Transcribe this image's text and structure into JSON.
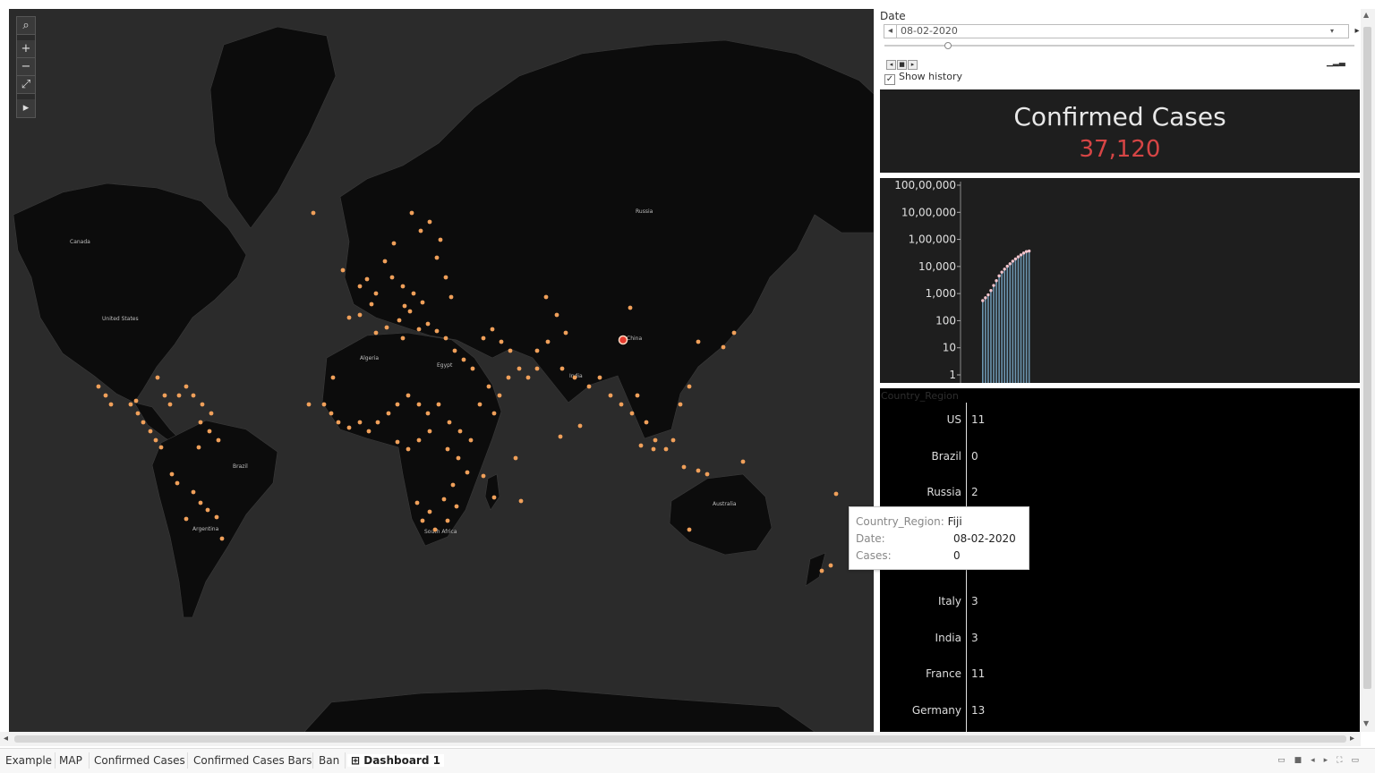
{
  "map": {
    "labels": [
      "Canada",
      "United States",
      "Brazil",
      "Argentina",
      "Algeria",
      "Egypt",
      "South Africa",
      "Russia",
      "China",
      "India",
      "Australia"
    ]
  },
  "controls": {
    "date_label": "Date",
    "date_value": "08-02-2020",
    "show_history": "Show history",
    "show_history_checked": true,
    "check_glyph": "✓"
  },
  "kpi": {
    "title": "Confirmed Cases",
    "value": "37,120",
    "value_color": "#d64545"
  },
  "chart_data": {
    "type": "bar",
    "scale": "log",
    "y_ticks": [
      "100,00,000",
      "10,00,000",
      "1,00,000",
      "10,000",
      "1,000",
      "100",
      "10",
      "1"
    ],
    "ylim": [
      1,
      10000000
    ],
    "values": [
      550,
      700,
      900,
      1300,
      2000,
      3000,
      4500,
      6200,
      8000,
      10200,
      12600,
      15700,
      19000,
      22700,
      26800,
      31300,
      35600,
      37120
    ],
    "bar_color": "#7fb3d5",
    "point_color": "#f2c4cc"
  },
  "bars": {
    "header": "Country_Region",
    "rows": [
      {
        "name": "US",
        "count": "11"
      },
      {
        "name": "Brazil",
        "count": "0"
      },
      {
        "name": "Russia",
        "count": "2"
      },
      {
        "name": "Italy",
        "count": "3"
      },
      {
        "name": "India",
        "count": "3"
      },
      {
        "name": "France",
        "count": "11"
      },
      {
        "name": "Germany",
        "count": "13"
      }
    ]
  },
  "tooltip": {
    "k1": "Country_Region:",
    "v1": "Fiji",
    "k2": "Date:",
    "v2": "08-02-2020",
    "k3": "Cases:",
    "v3": "0"
  },
  "tabs": [
    "Example",
    "MAP",
    "Confirmed Cases",
    "Confirmed Cases Bars",
    "Ban",
    "Dashboard 1"
  ],
  "active_tab": "Dashboard 1"
}
